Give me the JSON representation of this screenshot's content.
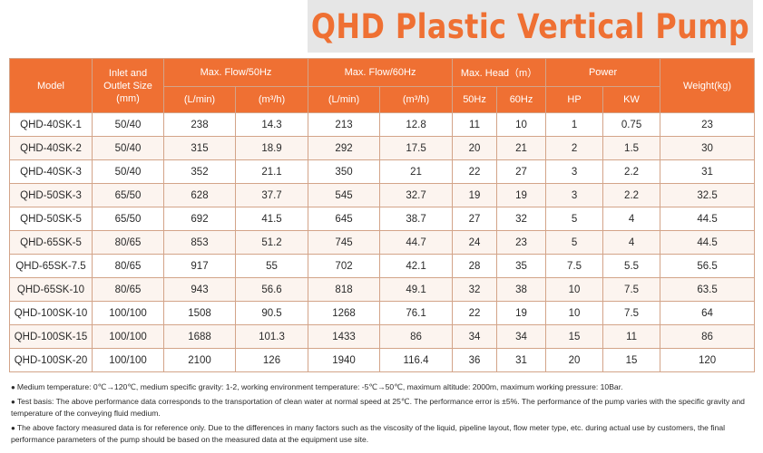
{
  "title": "QHD Plastic Vertical Pump",
  "headers": {
    "model": "Model",
    "inlet_l1": "Inlet and",
    "inlet_l2": "Outlet Size",
    "inlet_l3": "(mm)",
    "flow50": "Max. Flow/50Hz",
    "flow60": "Max. Flow/60Hz",
    "head": "Max. Head（m）",
    "power": "Power",
    "weight": "Weight(kg)",
    "lmin": "(L/min)",
    "m3h": "(m³/h)",
    "hz50": "50Hz",
    "hz60": "60Hz",
    "hp": "HP",
    "kw": "KW"
  },
  "rows": [
    {
      "model": "QHD-40SK-1",
      "size": "50/40",
      "f50_lmin": "238",
      "f50_m3h": "14.3",
      "f60_lmin": "213",
      "f60_m3h": "12.8",
      "h50": "11",
      "h60": "10",
      "hp": "1",
      "kw": "0.75",
      "weight": "23"
    },
    {
      "model": "QHD-40SK-2",
      "size": "50/40",
      "f50_lmin": "315",
      "f50_m3h": "18.9",
      "f60_lmin": "292",
      "f60_m3h": "17.5",
      "h50": "20",
      "h60": "21",
      "hp": "2",
      "kw": "1.5",
      "weight": "30"
    },
    {
      "model": "QHD-40SK-3",
      "size": "50/40",
      "f50_lmin": "352",
      "f50_m3h": "21.1",
      "f60_lmin": "350",
      "f60_m3h": "21",
      "h50": "22",
      "h60": "27",
      "hp": "3",
      "kw": "2.2",
      "weight": "31"
    },
    {
      "model": "QHD-50SK-3",
      "size": "65/50",
      "f50_lmin": "628",
      "f50_m3h": "37.7",
      "f60_lmin": "545",
      "f60_m3h": "32.7",
      "h50": "19",
      "h60": "19",
      "hp": "3",
      "kw": "2.2",
      "weight": "32.5"
    },
    {
      "model": "QHD-50SK-5",
      "size": "65/50",
      "f50_lmin": "692",
      "f50_m3h": "41.5",
      "f60_lmin": "645",
      "f60_m3h": "38.7",
      "h50": "27",
      "h60": "32",
      "hp": "5",
      "kw": "4",
      "weight": "44.5"
    },
    {
      "model": "QHD-65SK-5",
      "size": "80/65",
      "f50_lmin": "853",
      "f50_m3h": "51.2",
      "f60_lmin": "745",
      "f60_m3h": "44.7",
      "h50": "24",
      "h60": "23",
      "hp": "5",
      "kw": "4",
      "weight": "44.5"
    },
    {
      "model": "QHD-65SK-7.5",
      "size": "80/65",
      "f50_lmin": "917",
      "f50_m3h": "55",
      "f60_lmin": "702",
      "f60_m3h": "42.1",
      "h50": "28",
      "h60": "35",
      "hp": "7.5",
      "kw": "5.5",
      "weight": "56.5"
    },
    {
      "model": "QHD-65SK-10",
      "size": "80/65",
      "f50_lmin": "943",
      "f50_m3h": "56.6",
      "f60_lmin": "818",
      "f60_m3h": "49.1",
      "h50": "32",
      "h60": "38",
      "hp": "10",
      "kw": "7.5",
      "weight": "63.5"
    },
    {
      "model": "QHD-100SK-10",
      "size": "100/100",
      "f50_lmin": "1508",
      "f50_m3h": "90.5",
      "f60_lmin": "1268",
      "f60_m3h": "76.1",
      "h50": "22",
      "h60": "19",
      "hp": "10",
      "kw": "7.5",
      "weight": "64"
    },
    {
      "model": "QHD-100SK-15",
      "size": "100/100",
      "f50_lmin": "1688",
      "f50_m3h": "101.3",
      "f60_lmin": "1433",
      "f60_m3h": "86",
      "h50": "34",
      "h60": "34",
      "hp": "15",
      "kw": "11",
      "weight": "86"
    },
    {
      "model": "QHD-100SK-20",
      "size": "100/100",
      "f50_lmin": "2100",
      "f50_m3h": "126",
      "f60_lmin": "1940",
      "f60_m3h": "116.4",
      "h50": "36",
      "h60": "31",
      "hp": "20",
      "kw": "15",
      "weight": "120"
    }
  ],
  "notes": [
    "Medium temperature: 0℃→120℃, medium specific gravity: 1-2, working environment temperature: -5℃→50℃, maximum altitude: 2000m, maximum working pressure: 10Bar.",
    "Test basis: The above performance data corresponds to the transportation of clean water at normal speed at 25℃. The performance error is ±5%. The performance of the pump varies with the specific gravity and temperature of the conveying fluid medium.",
    "The above factory measured data is for reference only. Due to the differences in many factors such as the viscosity of the liquid, pipeline layout, flow meter type, etc. during actual use by customers, the final performance parameters of the pump should be based on the measured data at the equipment use site."
  ],
  "colors": {
    "accent": "#ef7033",
    "title_bg": "#e6e6e6",
    "border": "#d3a489"
  }
}
